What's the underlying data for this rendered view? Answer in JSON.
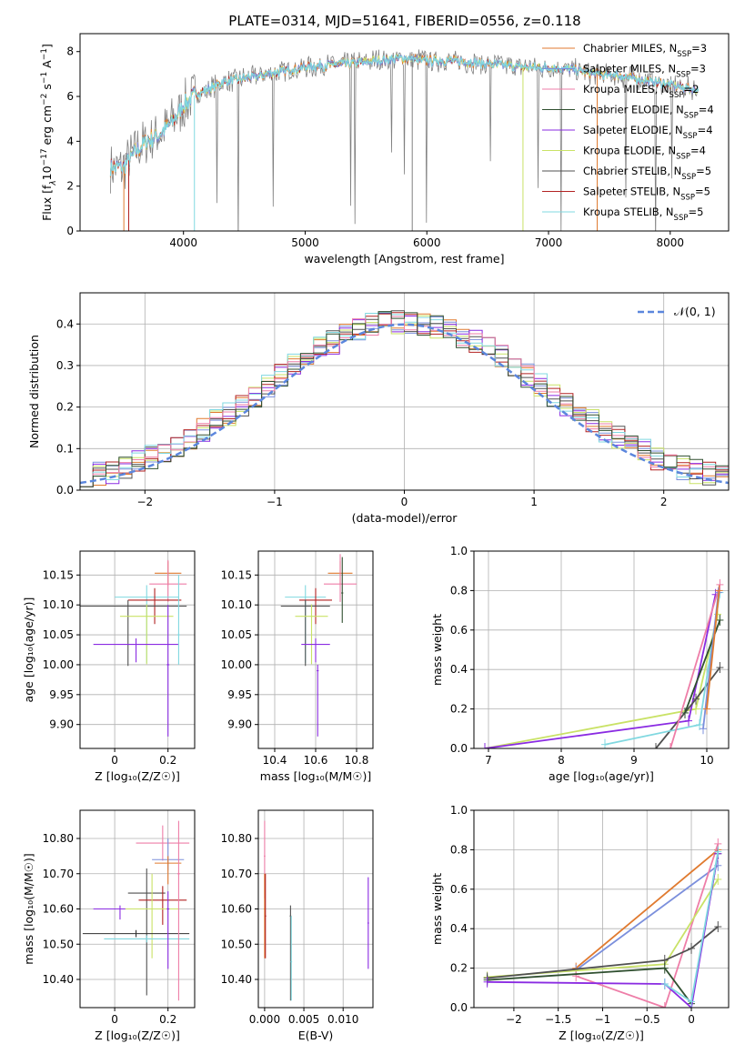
{
  "figure": {
    "title": "PLATE=0314, MJD=51641, FIBERID=0556, z=0.118",
    "palette": [
      "#e07a2f",
      "#7b8fdc",
      "#ee7ea8",
      "#2f2f2f",
      "#8a2be2",
      "#c9e266",
      "#a0522d",
      "#b22222",
      "#80d8e0"
    ]
  },
  "chart_data": [
    {
      "id": "spectrum",
      "type": "line",
      "xlabel": "wavelength [Angstrom, rest frame]",
      "ylabel_parts": [
        "Flux [f",
        "λ",
        "10",
        "−17",
        " erg cm",
        "−2",
        " s",
        "−1",
        " A",
        "−1",
        "]"
      ],
      "xlim": [
        3150,
        8480
      ],
      "ylim": [
        0,
        8.8
      ],
      "xticks": [
        4000,
        5000,
        6000,
        7000,
        8000
      ],
      "yticks": [
        0,
        2,
        4,
        6,
        8
      ],
      "data_shape": {
        "x": [
          3400,
          3500,
          3600,
          3700,
          3800,
          3900,
          4000,
          4100,
          4200,
          4300,
          4400,
          4500,
          4600,
          4700,
          4800,
          4900,
          5000,
          5200,
          5400,
          5600,
          5800,
          6000,
          6200,
          6400,
          6600,
          6800,
          7000,
          7200,
          7400,
          7600,
          7800,
          8000,
          8200
        ],
        "y": [
          2.9,
          2.8,
          3.5,
          4.0,
          4.3,
          4.8,
          5.6,
          6.1,
          6.3,
          6.6,
          6.7,
          6.8,
          6.9,
          7.0,
          7.1,
          7.2,
          7.3,
          7.4,
          7.5,
          7.6,
          7.7,
          7.6,
          7.6,
          7.5,
          7.4,
          7.3,
          7.3,
          7.2,
          7.0,
          6.9,
          6.7,
          6.5,
          6.3
        ]
      },
      "legend": [
        {
          "label": "Chabrier MILES, N",
          "sub": "SSP",
          "suffix": "=3",
          "color": "#e07a2f"
        },
        {
          "label": "Salpeter MILES, N",
          "sub": "SSP",
          "suffix": "=3",
          "color": "#7b8fdc"
        },
        {
          "label": "Kroupa MILES, N",
          "sub": "SSP",
          "suffix": "=2",
          "color": "#ee7ea8"
        },
        {
          "label": "Chabrier ELODIE, N",
          "sub": "SSP",
          "suffix": "=4",
          "color": "#2f4f2f"
        },
        {
          "label": "Salpeter ELODIE, N",
          "sub": "SSP",
          "suffix": "=4",
          "color": "#8a2be2"
        },
        {
          "label": "Kroupa ELODIE, N",
          "sub": "SSP",
          "suffix": "=4",
          "color": "#c9e266"
        },
        {
          "label": "Chabrier STELIB, N",
          "sub": "SSP",
          "suffix": "=5",
          "color": "#505050"
        },
        {
          "label": "Salpeter STELIB, N",
          "sub": "SSP",
          "suffix": "=5",
          "color": "#b22222"
        },
        {
          "label": "Kroupa STELIB, N",
          "sub": "SSP",
          "suffix": "=5",
          "color": "#80d8e0"
        }
      ]
    },
    {
      "id": "residual-histogram",
      "type": "bar",
      "xlabel": "(data-model)/error",
      "ylabel": "Normed distribution",
      "xlim": [
        -2.5,
        2.5
      ],
      "ylim": [
        0,
        0.475
      ],
      "xticks": [
        -2,
        -1,
        0,
        1,
        2
      ],
      "yticks": [
        0.0,
        0.1,
        0.2,
        0.3,
        0.4
      ],
      "legend": [
        {
          "label": "𝒩(0, 1)",
          "color": "#5b86dd"
        }
      ]
    },
    {
      "id": "age-vs-Z",
      "type": "scatter",
      "xlabel": "Z [log₁₀(Z/Z☉)]",
      "ylabel": "age  [log₁₀(age/yr)]",
      "xlim": [
        -0.13,
        0.3
      ],
      "ylim": [
        9.86,
        10.19
      ],
      "xticks": [
        0.0,
        0.2
      ],
      "yticks": [
        9.9,
        9.95,
        10.0,
        10.05,
        10.1,
        10.15
      ]
    },
    {
      "id": "age-vs-mass",
      "type": "scatter",
      "xlabel": "mass [log₁₀(M/M☉)]",
      "xlim": [
        10.32,
        10.88
      ],
      "ylim": [
        9.86,
        10.19
      ],
      "xticks": [
        10.4,
        10.6,
        10.8
      ],
      "yticks": [
        9.9,
        9.95,
        10.0,
        10.05,
        10.1,
        10.15
      ]
    },
    {
      "id": "massweight-vs-age",
      "type": "line",
      "xlabel": "age  [log₁₀(age/yr)]",
      "ylabel": "mass weight",
      "xlim": [
        6.8,
        10.3
      ],
      "ylim": [
        0.0,
        1.0
      ],
      "xticks": [
        7,
        8,
        9,
        10
      ],
      "yticks": [
        0.0,
        0.2,
        0.4,
        0.6,
        0.8,
        1.0
      ]
    },
    {
      "id": "mass-vs-Z",
      "type": "scatter",
      "xlabel": "Z [log₁₀(Z/Z☉)]",
      "ylabel": "mass [log₁₀(M/M☉)]",
      "xlim": [
        -0.13,
        0.3
      ],
      "ylim": [
        10.32,
        10.88
      ],
      "xticks": [
        0.0,
        0.2
      ],
      "yticks": [
        10.4,
        10.5,
        10.6,
        10.7,
        10.8
      ]
    },
    {
      "id": "mass-vs-ebv",
      "type": "scatter",
      "xlabel": "E(B-V)",
      "xlim": [
        -0.0008,
        0.0138
      ],
      "ylim": [
        10.32,
        10.88
      ],
      "xticks": [
        0.0,
        0.005,
        0.01
      ],
      "xticklabels": [
        "0.000",
        "0.005",
        "0.010"
      ],
      "yticks": [
        10.4,
        10.5,
        10.6,
        10.7,
        10.8
      ]
    },
    {
      "id": "massweight-vs-Z",
      "type": "line",
      "xlabel": "Z [log₁₀(Z/Z☉)]",
      "ylabel": "mass weight",
      "xlim": [
        -2.45,
        0.42
      ],
      "ylim": [
        0.0,
        1.0
      ],
      "xticks": [
        -2.0,
        -1.5,
        -1.0,
        -0.5,
        0.0
      ],
      "yticks": [
        0.0,
        0.2,
        0.4,
        0.6,
        0.8,
        1.0
      ]
    }
  ]
}
